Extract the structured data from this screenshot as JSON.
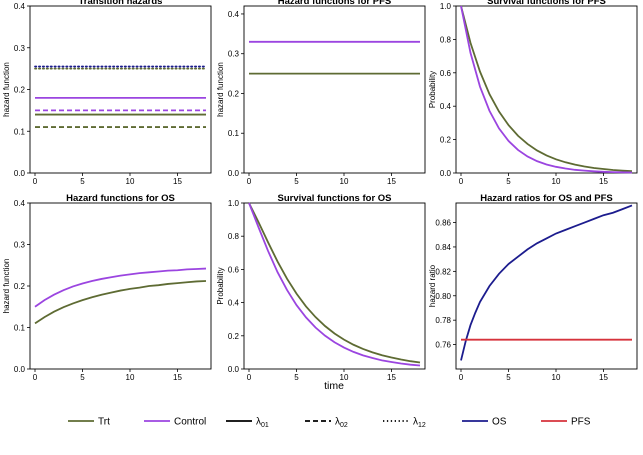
{
  "colors": {
    "trt": "#5e6b33",
    "control": "#9b45e0",
    "os": "#1c1c8e",
    "pfs": "#d6333c",
    "axis": "#000000"
  },
  "xaxis_title": "time",
  "chart_data": [
    {
      "type": "line",
      "title": "Transition hazards",
      "ylabel": "hazard function",
      "xlim": [
        0,
        18
      ],
      "ylim": [
        0,
        0.4
      ],
      "xticks": [
        "0",
        "5",
        "10",
        "15"
      ],
      "yticks": [
        "0.0",
        "0.1",
        "0.2",
        "0.3",
        "0.4"
      ],
      "series": [
        {
          "name": "Trt λ01",
          "group": "trt",
          "style": "solid",
          "x": [
            0,
            18
          ],
          "y": [
            0.14,
            0.14
          ]
        },
        {
          "name": "Control λ01",
          "group": "control",
          "style": "solid",
          "x": [
            0,
            18
          ],
          "y": [
            0.18,
            0.18
          ]
        },
        {
          "name": "Trt λ02",
          "group": "trt",
          "style": "dashed",
          "x": [
            0,
            18
          ],
          "y": [
            0.11,
            0.11
          ]
        },
        {
          "name": "Control λ02",
          "group": "control",
          "style": "dashed",
          "x": [
            0,
            18
          ],
          "y": [
            0.15,
            0.15
          ]
        },
        {
          "name": "Trt λ12",
          "group": "trt",
          "style": "dotted",
          "x": [
            0,
            18
          ],
          "y": [
            0.25,
            0.25
          ]
        },
        {
          "name": "Control λ12",
          "group": "os",
          "style": "dotted",
          "x": [
            0,
            18
          ],
          "y": [
            0.255,
            0.255
          ]
        }
      ]
    },
    {
      "type": "line",
      "title": "Hazard functions for PFS",
      "ylabel": "hazard function",
      "xlim": [
        0,
        18
      ],
      "ylim": [
        0,
        0.42
      ],
      "xticks": [
        "0",
        "5",
        "10",
        "15"
      ],
      "yticks": [
        "0.0",
        "0.1",
        "0.2",
        "0.3",
        "0.4"
      ],
      "series": [
        {
          "name": "Control",
          "group": "control",
          "style": "solid",
          "x": [
            0,
            18
          ],
          "y": [
            0.33,
            0.33
          ]
        },
        {
          "name": "Trt",
          "group": "trt",
          "style": "solid",
          "x": [
            0,
            18
          ],
          "y": [
            0.25,
            0.25
          ]
        }
      ]
    },
    {
      "type": "line",
      "title": "Survival functions for PFS",
      "ylabel": "Probability",
      "xlim": [
        0,
        18
      ],
      "ylim": [
        0,
        1
      ],
      "xticks": [
        "0",
        "5",
        "10",
        "15"
      ],
      "yticks": [
        "0.0",
        "0.2",
        "0.4",
        "0.6",
        "0.8",
        "1.0"
      ],
      "series": [
        {
          "name": "Trt",
          "group": "trt",
          "style": "solid",
          "x": [
            0,
            1,
            2,
            3,
            4,
            5,
            6,
            7,
            8,
            9,
            10,
            11,
            12,
            13,
            14,
            15,
            16,
            17,
            18
          ],
          "y": [
            1.0,
            0.779,
            0.607,
            0.472,
            0.368,
            0.287,
            0.223,
            0.174,
            0.135,
            0.105,
            0.082,
            0.064,
            0.05,
            0.039,
            0.03,
            0.024,
            0.018,
            0.014,
            0.011
          ]
        },
        {
          "name": "Control",
          "group": "control",
          "style": "solid",
          "x": [
            0,
            1,
            2,
            3,
            4,
            5,
            6,
            7,
            8,
            9,
            10,
            11,
            12,
            13,
            14,
            15,
            16,
            17,
            18
          ],
          "y": [
            1.0,
            0.719,
            0.517,
            0.372,
            0.267,
            0.192,
            0.138,
            0.099,
            0.071,
            0.051,
            0.037,
            0.027,
            0.019,
            0.014,
            0.01,
            0.007,
            0.005,
            0.004,
            0.003
          ]
        }
      ]
    },
    {
      "type": "line",
      "title": "Hazard functions for OS",
      "ylabel": "hazard function",
      "xlim": [
        0,
        18
      ],
      "ylim": [
        0,
        0.4
      ],
      "xticks": [
        "0",
        "5",
        "10",
        "15"
      ],
      "yticks": [
        "0.0",
        "0.1",
        "0.2",
        "0.3",
        "0.4"
      ],
      "series": [
        {
          "name": "Control",
          "group": "control",
          "style": "solid",
          "x": [
            0,
            1,
            2,
            3,
            4,
            5,
            6,
            7,
            8,
            9,
            10,
            11,
            12,
            13,
            14,
            15,
            16,
            17,
            18
          ],
          "y": [
            0.15,
            0.166,
            0.179,
            0.19,
            0.199,
            0.206,
            0.212,
            0.217,
            0.221,
            0.225,
            0.228,
            0.231,
            0.233,
            0.235,
            0.237,
            0.238,
            0.24,
            0.241,
            0.242
          ]
        },
        {
          "name": "Trt",
          "group": "trt",
          "style": "solid",
          "x": [
            0,
            1,
            2,
            3,
            4,
            5,
            6,
            7,
            8,
            9,
            10,
            11,
            12,
            13,
            14,
            15,
            16,
            17,
            18
          ],
          "y": [
            0.11,
            0.125,
            0.138,
            0.149,
            0.158,
            0.166,
            0.173,
            0.179,
            0.184,
            0.189,
            0.193,
            0.196,
            0.2,
            0.202,
            0.205,
            0.207,
            0.209,
            0.211,
            0.212
          ]
        }
      ]
    },
    {
      "type": "line",
      "title": "Survival functions for OS",
      "ylabel": "Probability",
      "xlim": [
        0,
        18
      ],
      "ylim": [
        0,
        1
      ],
      "xticks": [
        "0",
        "5",
        "10",
        "15"
      ],
      "yticks": [
        "0.0",
        "0.2",
        "0.4",
        "0.6",
        "0.8",
        "1.0"
      ],
      "series": [
        {
          "name": "Trt",
          "group": "trt",
          "style": "solid",
          "x": [
            0,
            1,
            2,
            3,
            4,
            5,
            6,
            7,
            8,
            9,
            10,
            11,
            12,
            13,
            14,
            15,
            16,
            17,
            18
          ],
          "y": [
            1.0,
            0.885,
            0.764,
            0.648,
            0.544,
            0.454,
            0.377,
            0.313,
            0.259,
            0.214,
            0.177,
            0.146,
            0.121,
            0.1,
            0.083,
            0.069,
            0.057,
            0.047,
            0.039
          ]
        },
        {
          "name": "Control",
          "group": "control",
          "style": "solid",
          "x": [
            0,
            1,
            2,
            3,
            4,
            5,
            6,
            7,
            8,
            9,
            10,
            11,
            12,
            13,
            14,
            15,
            16,
            17,
            18
          ],
          "y": [
            1.0,
            0.854,
            0.712,
            0.584,
            0.476,
            0.385,
            0.311,
            0.25,
            0.201,
            0.161,
            0.129,
            0.103,
            0.082,
            0.066,
            0.052,
            0.042,
            0.033,
            0.026,
            0.021
          ]
        }
      ]
    },
    {
      "type": "line",
      "title": "Hazard ratios for OS and PFS",
      "ylabel": "hazard ratio",
      "xlim": [
        0,
        18
      ],
      "ylim": [
        0.74,
        0.876
      ],
      "xticks": [
        "0",
        "5",
        "10",
        "15"
      ],
      "yticks": [
        "0.76",
        "0.78",
        "0.80",
        "0.82",
        "0.84",
        "0.86"
      ],
      "series": [
        {
          "name": "OS",
          "group": "os",
          "style": "solid",
          "x": [
            0,
            0.25,
            0.5,
            1,
            1.5,
            2,
            3,
            4,
            5,
            6,
            7,
            8,
            9,
            10,
            11,
            12,
            13,
            14,
            15,
            16,
            17,
            18
          ],
          "y": [
            0.747,
            0.755,
            0.763,
            0.776,
            0.786,
            0.795,
            0.808,
            0.818,
            0.826,
            0.832,
            0.838,
            0.843,
            0.847,
            0.851,
            0.854,
            0.857,
            0.86,
            0.863,
            0.866,
            0.868,
            0.871,
            0.874
          ]
        },
        {
          "name": "PFS",
          "group": "pfs",
          "style": "solid",
          "x": [
            0,
            18
          ],
          "y": [
            0.764,
            0.764
          ]
        }
      ]
    }
  ],
  "legend": [
    {
      "label": "Trt",
      "group": "trt",
      "style": "solid"
    },
    {
      "label": "Control",
      "group": "control",
      "style": "solid"
    },
    {
      "label": "λ01",
      "base": "λ",
      "sub": "01",
      "group": "axis",
      "style": "solid"
    },
    {
      "label": "λ02",
      "base": "λ",
      "sub": "02",
      "group": "axis",
      "style": "dashed"
    },
    {
      "label": "λ12",
      "base": "λ",
      "sub": "12",
      "group": "axis",
      "style": "dotted"
    },
    {
      "label": "OS",
      "group": "os",
      "style": "solid"
    },
    {
      "label": "PFS",
      "group": "pfs",
      "style": "solid"
    }
  ]
}
